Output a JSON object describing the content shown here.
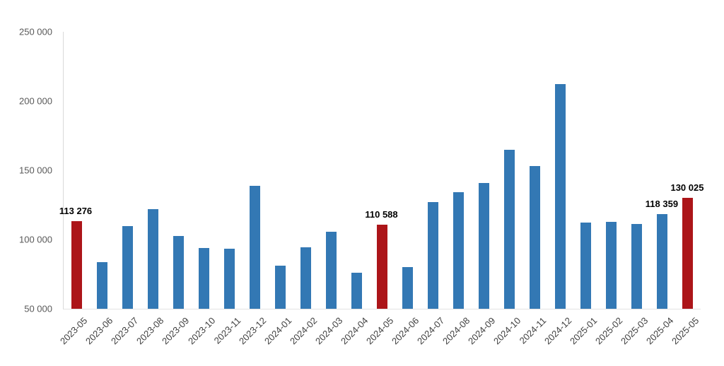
{
  "chart_data": {
    "type": "bar",
    "title": "",
    "xlabel": "",
    "ylabel": "",
    "grid": false,
    "legend": false,
    "categories": [
      "2023-05",
      "2023-06",
      "2023-07",
      "2023-08",
      "2023-09",
      "2023-10",
      "2023-11",
      "2023-12",
      "2024-01",
      "2024-02",
      "2024-03",
      "2024-04",
      "2024-05",
      "2024-06",
      "2024-07",
      "2024-08",
      "2024-09",
      "2024-10",
      "2024-11",
      "2024-12",
      "2025-01",
      "2025-02",
      "2025-03",
      "2025-04",
      "2025-05"
    ],
    "values": [
      113276,
      83500,
      109500,
      122000,
      102500,
      94000,
      93500,
      139000,
      81000,
      94500,
      105500,
      76000,
      110588,
      80000,
      127000,
      134000,
      141000,
      165000,
      153000,
      212000,
      112000,
      113000,
      111000,
      118359,
      130025
    ],
    "bar_color": "#3378B4",
    "highlight_color": "#AC1519",
    "highlight_indices": [
      0,
      12,
      24
    ],
    "data_labels": [
      {
        "index": 0,
        "text": "113 276"
      },
      {
        "index": 12,
        "text": "110 588"
      },
      {
        "index": 23,
        "text": "118 359"
      },
      {
        "index": 24,
        "text": "130 025"
      }
    ],
    "ylim": [
      50000,
      250000
    ],
    "yticks": [
      {
        "value": 50000,
        "label": "50 000"
      },
      {
        "value": 100000,
        "label": "100 000"
      },
      {
        "value": 150000,
        "label": "150 000"
      },
      {
        "value": 200000,
        "label": "200 000"
      },
      {
        "value": 250000,
        "label": "250 000"
      }
    ]
  }
}
